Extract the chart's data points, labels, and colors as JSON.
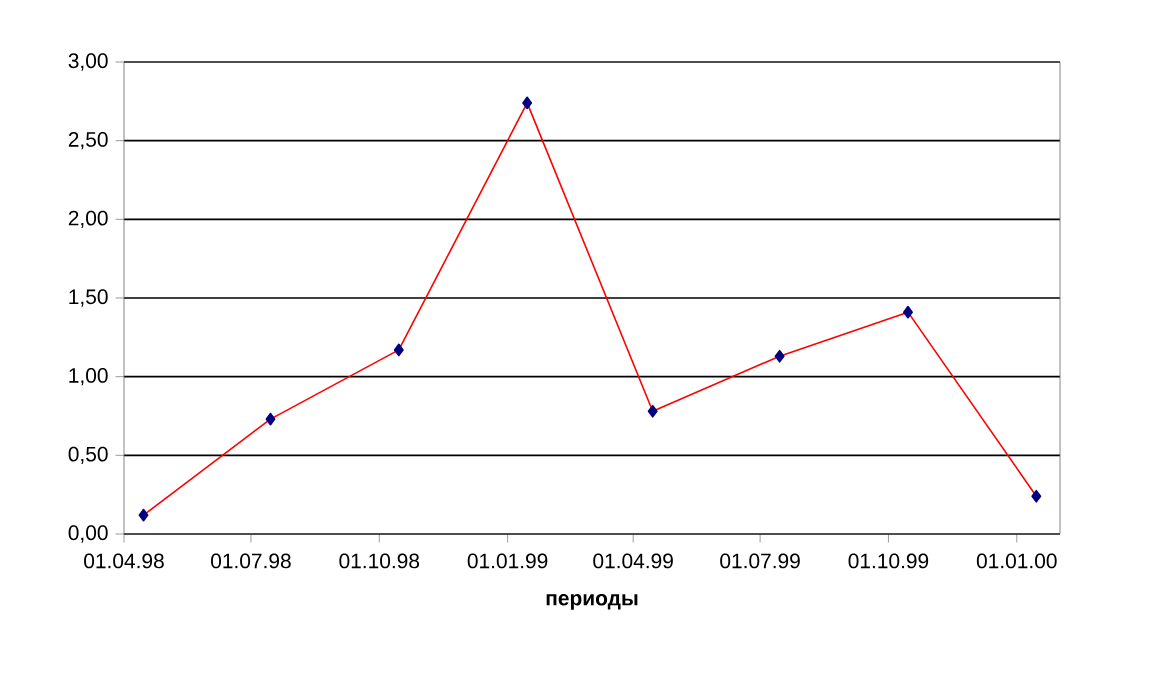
{
  "chart_data": {
    "type": "line",
    "xlabel": "**периоды**",
    "x": [
      "1998-04-15",
      "1998-07-15",
      "1998-10-15",
      "1999-01-15",
      "1999-04-15",
      "1999-07-15",
      "1999-10-15",
      "2000-01-15"
    ],
    "series": [
      {
        "color": "#ff0000",
        "values": [
          0.12,
          0.73,
          1.17,
          2.74,
          0.78,
          1.13,
          1.41,
          0.24
        ]
      }
    ],
    "marker": "diamond",
    "grid": "y",
    "xlim": [
      "1998-04-01",
      "2000-02-01"
    ],
    "xticks": [
      {
        "value": "1998-04-01",
        "label": "01.04.98"
      },
      {
        "value": "1998-07-01",
        "label": "01.07.98"
      },
      {
        "value": "1998-10-01",
        "label": "01.10.98"
      },
      {
        "value": "1999-01-01",
        "label": "01.01.99"
      },
      {
        "value": "1999-04-01",
        "label": "01.04.99"
      },
      {
        "value": "1999-07-01",
        "label": "01.07.99"
      },
      {
        "value": "1999-10-01",
        "label": "01.10.99"
      },
      {
        "value": "2000-01-01",
        "label": "01.01.00"
      }
    ],
    "ylim": [
      0,
      3
    ],
    "yticks": [
      {
        "value": 0,
        "label": "0,00"
      },
      {
        "value": 0.5,
        "label": "0,50"
      },
      {
        "value": 1,
        "label": "1,00"
      },
      {
        "value": 1.5,
        "label": "1,50"
      },
      {
        "value": 2,
        "label": "2,00"
      },
      {
        "value": 2.5,
        "label": "2,50"
      },
      {
        "value": 3,
        "label": "3,00"
      }
    ]
  }
}
